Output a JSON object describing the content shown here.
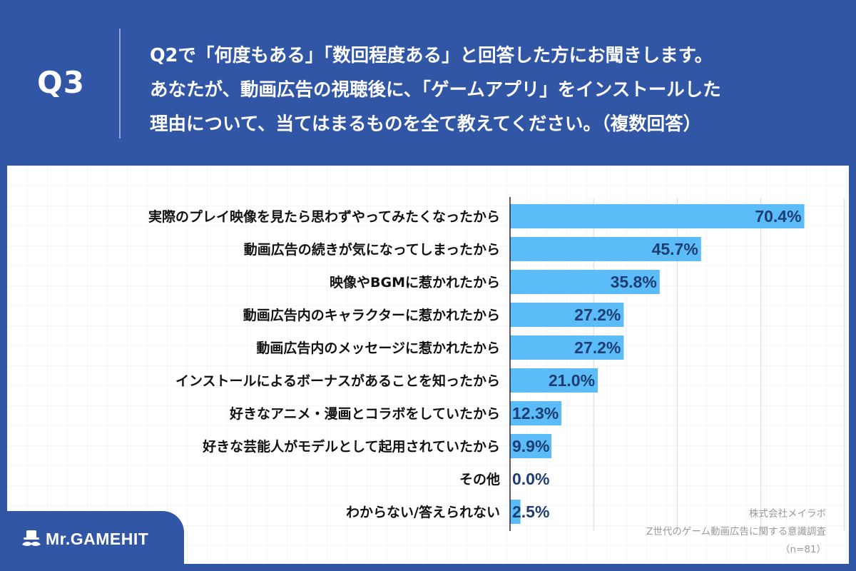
{
  "header": {
    "q_label": "Q3",
    "question_lines": [
      "Q2で「何度もある」「数回程度ある」と回答した方にお聞きします。",
      "あなたが、動画広告の視聴後に、「ゲームアプリ」をインストールした",
      "理由について、当てはまるものを全て教えてください。（複数回答）"
    ]
  },
  "colors": {
    "background": "#3156a6",
    "bar": "#5bbcf7",
    "value_text": "#1d3d73",
    "grid": "#d6d6d6"
  },
  "chart_data": {
    "type": "bar",
    "orientation": "horizontal",
    "categories": [
      "実際のプレイ映像を見たら思わずやってみたくなったから",
      "動画広告の続きが気になってしまったから",
      "映像やBGMに惹かれたから",
      "動画広告内のキャラクターに惹かれたから",
      "動画広告内のメッセージに惹かれたから",
      "インストールによるボーナスがあることを知ったから",
      "好きなアニメ・漫画とコラボをしていたから",
      "好きな芸能人がモデルとして起用されていたから",
      "その他",
      "わからない/答えられない"
    ],
    "values": [
      70.4,
      45.7,
      35.8,
      27.2,
      27.2,
      21.0,
      12.3,
      9.9,
      0.0,
      2.5
    ],
    "value_labels": [
      "70.4%",
      "45.7%",
      "35.8%",
      "27.2%",
      "27.2%",
      "21.0%",
      "12.3%",
      "9.9%",
      "0.0%",
      "2.5%"
    ],
    "xlim": [
      0,
      80
    ],
    "grid": true,
    "title": "",
    "xlabel": "",
    "ylabel": ""
  },
  "source": {
    "lines": [
      "株式会社メイラボ",
      "Z世代のゲーム動画広告に関する意識調査",
      "（n=81）"
    ]
  },
  "logo": {
    "text": "Mr.GAMEHIT",
    "icon": "mustache-hat-icon"
  }
}
